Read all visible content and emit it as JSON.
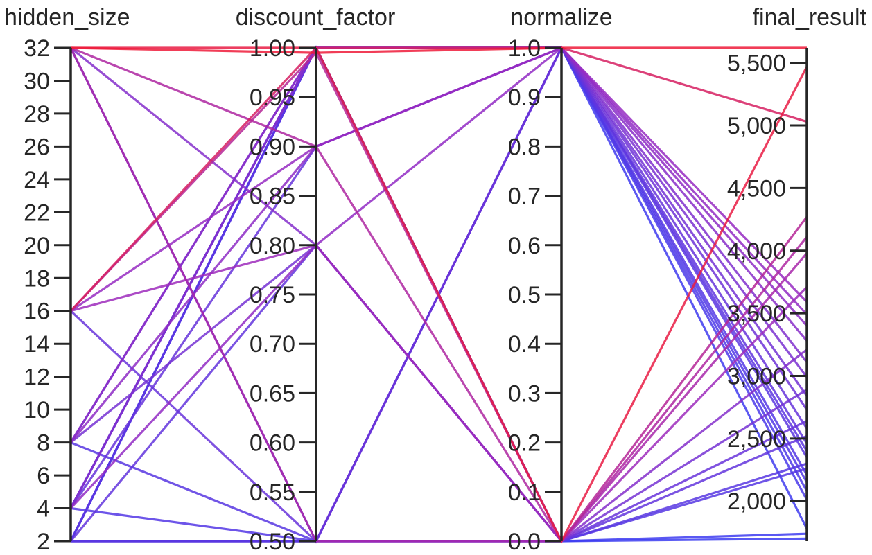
{
  "chart_data": {
    "type": "parallel_coordinates",
    "title": "",
    "colors": {
      "low": "#3a3cf2",
      "mid": "#9a2bc0",
      "high": "#ef1b3a",
      "axis": "#262626"
    },
    "axes": [
      {
        "name": "hidden_size",
        "range": [
          2,
          32
        ],
        "ticks": [
          2,
          4,
          6,
          8,
          10,
          12,
          14,
          16,
          18,
          20,
          22,
          24,
          26,
          28,
          30,
          32
        ],
        "tick_labels": [
          "2",
          "4",
          "6",
          "8",
          "10",
          "12",
          "14",
          "16",
          "18",
          "20",
          "22",
          "24",
          "26",
          "28",
          "30",
          "32"
        ]
      },
      {
        "name": "discount_factor",
        "range": [
          0.5,
          1.0
        ],
        "ticks": [
          0.5,
          0.55,
          0.6,
          0.65,
          0.7,
          0.75,
          0.8,
          0.85,
          0.9,
          0.95,
          1.0
        ],
        "tick_labels": [
          "0.50",
          "0.55",
          "0.60",
          "0.65",
          "0.70",
          "0.75",
          "0.80",
          "0.85",
          "0.90",
          "0.95",
          "1.00"
        ]
      },
      {
        "name": "normalize",
        "range": [
          0,
          1
        ],
        "ticks": [
          0,
          0.1,
          0.2,
          0.3,
          0.4,
          0.5,
          0.6,
          0.7,
          0.8,
          0.9,
          1.0
        ],
        "tick_labels": [
          "0.0",
          "0.1",
          "0.2",
          "0.3",
          "0.4",
          "0.5",
          "0.6",
          "0.7",
          "0.8",
          "0.9",
          "1.0"
        ]
      },
      {
        "name": "final_result",
        "range": [
          1680,
          5620
        ],
        "ticks": [
          2000,
          2500,
          3000,
          3500,
          4000,
          4500,
          5000,
          5500
        ],
        "tick_labels": [
          "2,000",
          "2,500",
          "3,000",
          "3,500",
          "4,000",
          "4,500",
          "5,000",
          "5,500"
        ]
      }
    ],
    "color_by": "final_result",
    "series": [
      {
        "values": [
          32,
          1.0,
          0,
          5470
        ]
      },
      {
        "values": [
          32,
          0.995,
          1,
          5620
        ]
      },
      {
        "values": [
          16,
          1.0,
          1,
          5030
        ]
      },
      {
        "values": [
          16,
          0.995,
          0,
          4270
        ]
      },
      {
        "values": [
          32,
          0.9,
          0,
          4110
        ]
      },
      {
        "values": [
          32,
          0.5,
          0,
          3980
        ]
      },
      {
        "values": [
          16,
          0.8,
          0,
          3710
        ]
      },
      {
        "values": [
          16,
          0.9,
          1,
          3590
        ]
      },
      {
        "values": [
          4,
          0.8,
          1,
          3490
        ]
      },
      {
        "values": [
          8,
          0.9,
          1,
          3400
        ]
      },
      {
        "values": [
          8,
          1.0,
          1,
          3280
        ]
      },
      {
        "values": [
          32,
          0.8,
          0,
          3210
        ]
      },
      {
        "values": [
          4,
          1.0,
          1,
          3110
        ]
      },
      {
        "values": [
          8,
          1.0,
          1,
          2990
        ]
      },
      {
        "values": [
          8,
          0.8,
          0,
          2890
        ]
      },
      {
        "values": [
          4,
          1.0,
          1,
          2840
        ]
      },
      {
        "values": [
          32,
          0.5,
          1,
          2730
        ]
      },
      {
        "values": [
          16,
          0.5,
          0,
          2640
        ]
      },
      {
        "values": [
          4,
          0.9,
          1,
          2580
        ]
      },
      {
        "values": [
          2,
          0.8,
          0,
          2520
        ]
      },
      {
        "values": [
          4,
          1.0,
          1,
          2460
        ]
      },
      {
        "values": [
          2,
          1.0,
          1,
          2400
        ]
      },
      {
        "values": [
          2,
          0.5,
          1,
          2350
        ]
      },
      {
        "values": [
          8,
          0.5,
          0,
          2300
        ]
      },
      {
        "values": [
          2,
          0.5,
          0,
          2260
        ]
      },
      {
        "values": [
          4,
          0.5,
          1,
          2210
        ]
      },
      {
        "values": [
          2,
          1.0,
          1,
          2150
        ]
      },
      {
        "values": [
          2,
          0.5,
          1,
          2080
        ]
      },
      {
        "values": [
          4,
          1.0,
          1,
          2010
        ]
      },
      {
        "values": [
          2,
          1.0,
          1,
          1780
        ]
      },
      {
        "values": [
          2,
          1.0,
          0,
          1740
        ]
      },
      {
        "values": [
          2,
          1.0,
          0,
          1700
        ]
      }
    ]
  }
}
